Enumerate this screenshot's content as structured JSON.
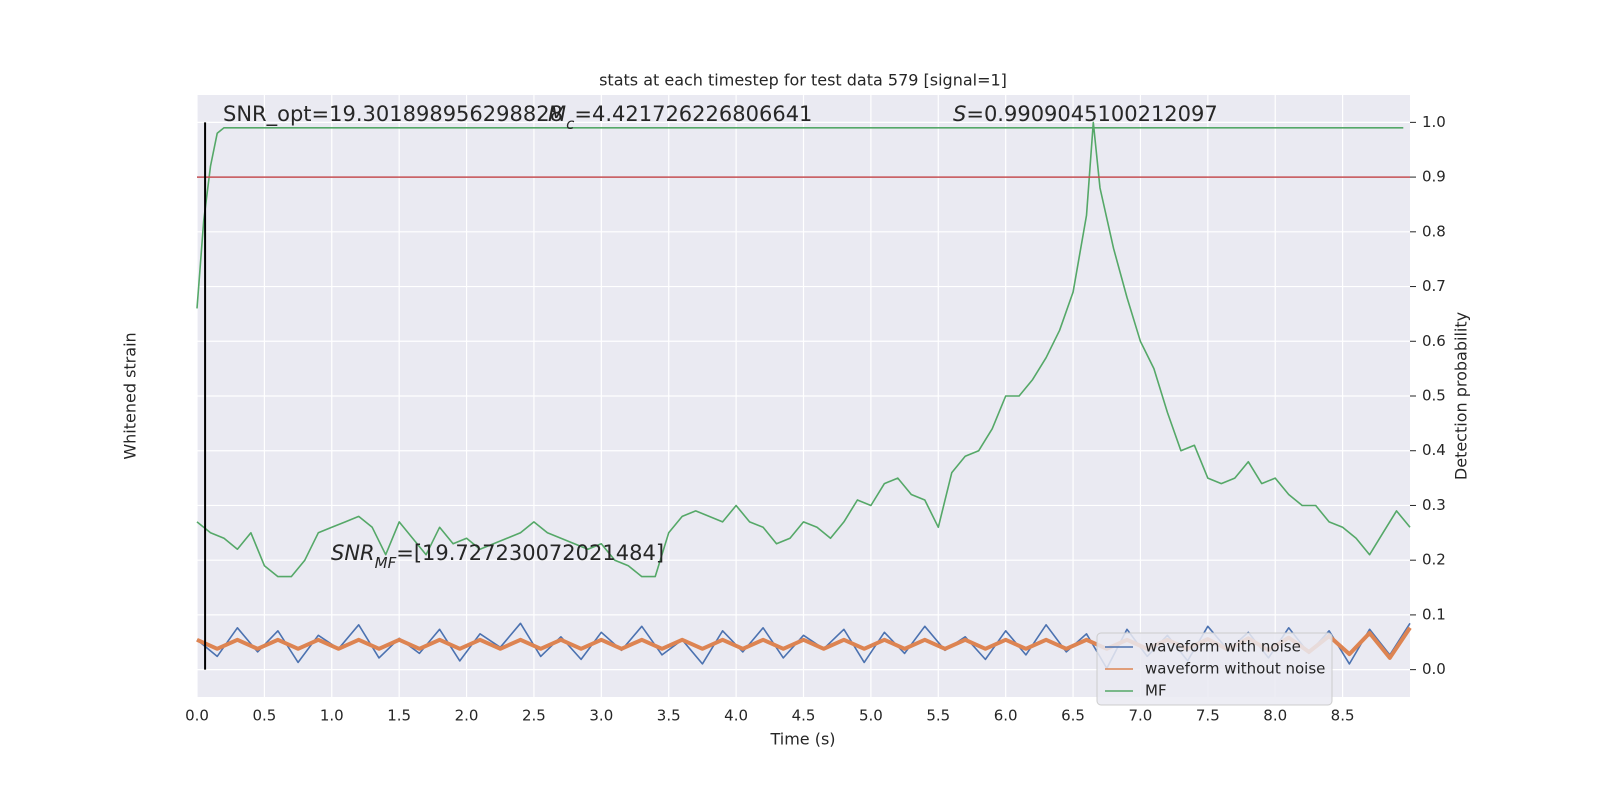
{
  "chart_data": {
    "type": "line",
    "title": "stats at each timestep for test data 579 [signal=1]",
    "xlabel": "Time (s)",
    "ylabel": "Whitened strain",
    "y2label": "Detection probability",
    "xlim": [
      0,
      9.0
    ],
    "xticks": [
      {
        "value": 0,
        "label": "0.0"
      },
      0.5,
      {
        "value": 1,
        "label": "1.0"
      },
      1.5,
      {
        "value": 2,
        "label": "2.0"
      },
      2.5,
      {
        "value": 3,
        "label": "3.0"
      },
      3.5,
      {
        "value": 4,
        "label": "4.0"
      },
      4.5,
      {
        "value": 5,
        "label": "5.0"
      },
      5.5,
      {
        "value": 6,
        "label": "6.0"
      },
      6.5,
      {
        "value": 7,
        "label": "7.0"
      },
      7.5,
      {
        "value": 8,
        "label": "8.0"
      },
      8.5
    ],
    "ylim": [
      -3.5,
      36.5
    ],
    "y2lim": [
      -0.05,
      1.05
    ],
    "y2ticks": [
      {
        "value": 0,
        "label": "0.0"
      },
      0.1,
      0.2,
      0.3,
      0.4,
      0.5,
      0.6,
      0.7,
      0.8,
      0.9,
      {
        "value": 1,
        "label": "1.0"
      }
    ],
    "grid": true,
    "legend": "lower right",
    "series": [
      {
        "name": "waveform with noise",
        "color": "#4c72b0",
        "axis": "y",
        "x": [
          0,
          0.15,
          0.3,
          0.45,
          0.6,
          0.75,
          0.9,
          1.05,
          1.2,
          1.35,
          1.5,
          1.65,
          1.8,
          1.95,
          2.1,
          2.25,
          2.4,
          2.55,
          2.7,
          2.85,
          3,
          3.15,
          3.3,
          3.45,
          3.6,
          3.75,
          3.9,
          4.05,
          4.2,
          4.35,
          4.5,
          4.65,
          4.8,
          4.95,
          5.1,
          5.25,
          5.4,
          5.55,
          5.7,
          5.85,
          6,
          6.15,
          6.3,
          6.45,
          6.6,
          6.75,
          6.9,
          7.05,
          7.2,
          7.35,
          7.5,
          7.65,
          7.8,
          7.95,
          8.1,
          8.25,
          8.4,
          8.55,
          8.7,
          8.85,
          9
        ],
        "values": [
          0.3,
          -0.8,
          1.1,
          -0.5,
          0.9,
          -1.2,
          0.6,
          -0.3,
          1.3,
          -0.9,
          0.4,
          -0.6,
          1.0,
          -1.1,
          0.7,
          -0.2,
          1.4,
          -0.8,
          0.5,
          -1.0,
          0.8,
          -0.4,
          1.2,
          -0.7,
          0.3,
          -1.3,
          0.9,
          -0.5,
          1.1,
          -0.9,
          0.6,
          -0.3,
          1.0,
          -1.2,
          0.8,
          -0.6,
          1.2,
          -0.4,
          0.5,
          -1.0,
          0.9,
          -0.7,
          1.3,
          -0.5,
          0.7,
          -1.6,
          1.0,
          -0.8,
          0.6,
          -1.1,
          1.2,
          -0.4,
          0.8,
          -0.9,
          1.1,
          -0.6,
          0.9,
          -1.3,
          1.0,
          -0.7,
          1.4
        ]
      },
      {
        "name": "waveform without noise",
        "color": "#dd8452",
        "axis": "y",
        "x": [
          0,
          0.15,
          0.3,
          0.45,
          0.6,
          0.75,
          0.9,
          1.05,
          1.2,
          1.35,
          1.5,
          1.65,
          1.8,
          1.95,
          2.1,
          2.25,
          2.4,
          2.55,
          2.7,
          2.85,
          3,
          3.15,
          3.3,
          3.45,
          3.6,
          3.75,
          3.9,
          4.05,
          4.2,
          4.35,
          4.5,
          4.65,
          4.8,
          4.95,
          5.1,
          5.25,
          5.4,
          5.55,
          5.7,
          5.85,
          6,
          6.15,
          6.3,
          6.45,
          6.6,
          6.75,
          6.9,
          7.05,
          7.2,
          7.35,
          7.5,
          7.65,
          7.8,
          7.95,
          8.1,
          8.25,
          8.4,
          8.55,
          8.7,
          8.85,
          9
        ],
        "values": [
          0.3,
          -0.3,
          0.3,
          -0.3,
          0.3,
          -0.3,
          0.3,
          -0.3,
          0.3,
          -0.3,
          0.3,
          -0.3,
          0.3,
          -0.3,
          0.3,
          -0.3,
          0.3,
          -0.3,
          0.3,
          -0.3,
          0.3,
          -0.3,
          0.3,
          -0.3,
          0.3,
          -0.3,
          0.3,
          -0.3,
          0.3,
          -0.3,
          0.3,
          -0.3,
          0.3,
          -0.3,
          0.3,
          -0.3,
          0.3,
          -0.3,
          0.3,
          -0.3,
          0.3,
          -0.3,
          0.3,
          -0.3,
          0.3,
          -0.3,
          0.3,
          -0.3,
          0.3,
          -0.3,
          0.35,
          -0.35,
          0.4,
          -0.4,
          0.45,
          -0.5,
          0.55,
          -0.65,
          0.75,
          -0.9,
          1.1
        ]
      },
      {
        "name": "MF",
        "color": "#55a868",
        "axis": "y2",
        "x": [
          0,
          0.05,
          0.1,
          0.15,
          0.2,
          0.3,
          8.95
        ],
        "values": [
          0.66,
          0.82,
          0.92,
          0.98,
          0.99,
          0.99,
          0.99
        ]
      },
      {
        "color": "#55a868",
        "axis": "y2",
        "x": [
          0,
          0.1,
          0.2,
          0.3,
          0.4,
          0.5,
          0.6,
          0.7,
          0.8,
          0.9,
          1,
          1.1,
          1.2,
          1.3,
          1.4,
          1.5,
          1.6,
          1.7,
          1.8,
          1.9,
          2,
          2.1,
          2.2,
          2.3,
          2.4,
          2.5,
          2.6,
          2.7,
          2.8,
          2.9,
          3,
          3.1,
          3.2,
          3.3,
          3.4,
          3.5,
          3.6,
          3.7,
          3.8,
          3.9,
          4,
          4.1,
          4.2,
          4.3,
          4.4,
          4.5,
          4.6,
          4.7,
          4.8,
          4.9,
          5,
          5.1,
          5.2,
          5.3,
          5.4,
          5.5,
          5.6,
          5.7,
          5.8,
          5.9,
          6,
          6.1,
          6.2,
          6.3,
          6.4,
          6.5,
          6.6,
          6.65,
          6.7,
          6.8,
          6.9,
          7,
          7.1,
          7.2,
          7.3,
          7.4,
          7.5,
          7.6,
          7.7,
          7.8,
          7.9,
          8,
          8.1,
          8.2,
          8.3,
          8.4,
          8.5,
          8.6,
          8.7,
          8.8,
          8.9,
          9
        ],
        "values": [
          0.27,
          0.25,
          0.24,
          0.22,
          0.25,
          0.19,
          0.17,
          0.17,
          0.2,
          0.25,
          0.26,
          0.27,
          0.28,
          0.26,
          0.21,
          0.27,
          0.24,
          0.21,
          0.26,
          0.23,
          0.24,
          0.22,
          0.23,
          0.24,
          0.25,
          0.27,
          0.25,
          0.24,
          0.23,
          0.22,
          0.23,
          0.2,
          0.19,
          0.17,
          0.17,
          0.25,
          0.28,
          0.29,
          0.28,
          0.27,
          0.3,
          0.27,
          0.26,
          0.23,
          0.24,
          0.27,
          0.26,
          0.24,
          0.27,
          0.31,
          0.3,
          0.34,
          0.35,
          0.32,
          0.31,
          0.26,
          0.36,
          0.39,
          0.4,
          0.44,
          0.5,
          0.5,
          0.53,
          0.57,
          0.62,
          0.69,
          0.83,
          1.0,
          0.88,
          0.77,
          0.68,
          0.6,
          0.55,
          0.47,
          0.4,
          0.41,
          0.35,
          0.34,
          0.35,
          0.38,
          0.34,
          0.35,
          0.32,
          0.3,
          0.3,
          0.27,
          0.26,
          0.24,
          0.21,
          0.25,
          0.29,
          0.26
        ]
      }
    ],
    "hline": {
      "y": 0.9,
      "color": "#c44e52",
      "axis": "y2"
    },
    "vline": {
      "x": 0.06,
      "ymin": 0,
      "ymax": 1.0,
      "color": "#000000",
      "axis": "y2"
    },
    "annotations": [
      {
        "segments": [
          {
            "text": "SNR_opt=19.301898956298828"
          }
        ]
      },
      {
        "segments": [
          {
            "text": "M",
            "italic": true
          },
          {
            "text": "c",
            "italic": true,
            "sub": true
          },
          {
            "text": "=4.421726226806641"
          }
        ]
      },
      {
        "segments": [
          {
            "text": "S",
            "italic": true
          },
          {
            "text": "=0.9909045100212097"
          }
        ]
      },
      {
        "segments": [
          {
            "text": "SNR",
            "italic": true
          },
          {
            "text": "MF",
            "italic": true,
            "sub": true
          },
          {
            "text": "=[19.727230072021484]"
          }
        ]
      }
    ]
  }
}
